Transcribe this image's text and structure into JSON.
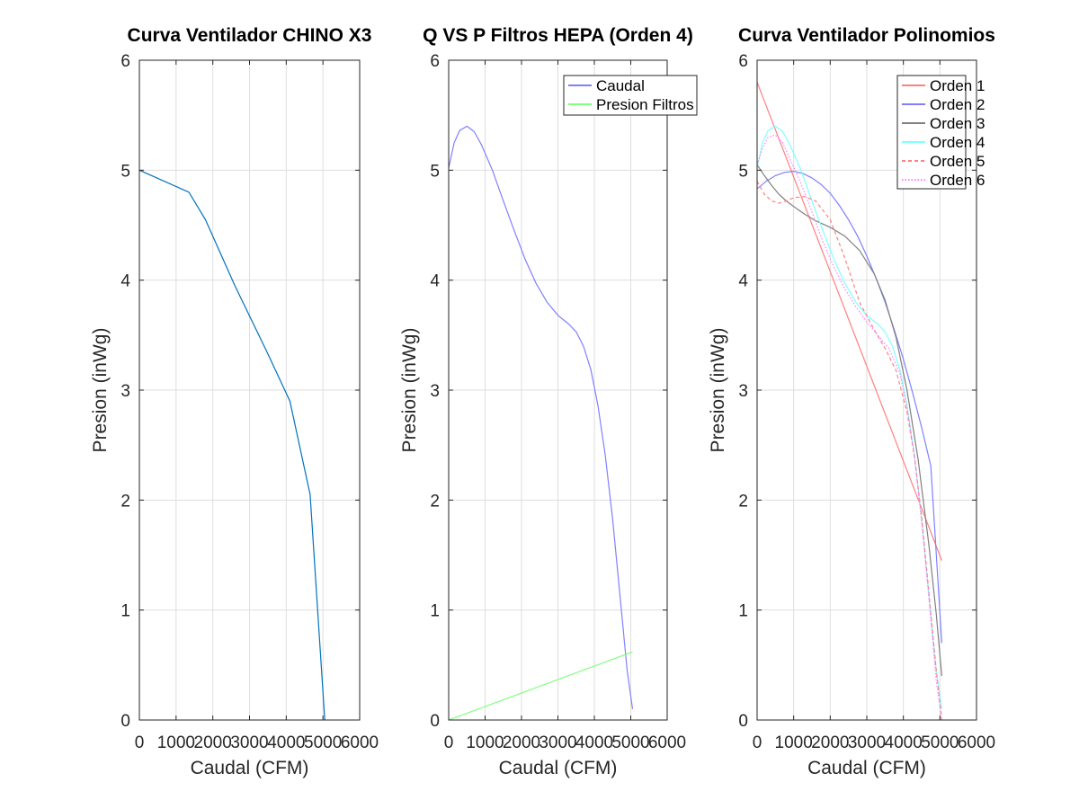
{
  "chart_data": [
    {
      "type": "line",
      "title": "Curva Ventilador CHINO X3",
      "xlabel": "Caudal (CFM)",
      "ylabel": "Presion (inWg)",
      "xlim": [
        0,
        6000
      ],
      "ylim": [
        0,
        6
      ],
      "xticks": [
        "0",
        "1000",
        "2000",
        "3000",
        "4000",
        "5000",
        "6000"
      ],
      "yticks": [
        "0",
        "1",
        "2",
        "3",
        "4",
        "5",
        "6"
      ],
      "grid": true,
      "legend": null,
      "series": [
        {
          "color": "#0072bd",
          "dash": "solid",
          "x": [
            0,
            1350,
            1800,
            2600,
            3500,
            4100,
            4650,
            5050
          ],
          "y": [
            5.0,
            4.8,
            4.55,
            3.95,
            3.33,
            2.9,
            2.05,
            0.0
          ]
        }
      ]
    },
    {
      "type": "line",
      "title": "Q VS P Filtros HEPA (Orden 4)",
      "xlabel": "Caudal (CFM)",
      "ylabel": "Presion (inWg)",
      "xlim": [
        0,
        6000
      ],
      "ylim": [
        0,
        6
      ],
      "xticks": [
        "0",
        "1000",
        "2000",
        "3000",
        "4000",
        "5000",
        "6000"
      ],
      "yticks": [
        "0",
        "1",
        "2",
        "3",
        "4",
        "5",
        "6"
      ],
      "grid": true,
      "legend": "top-right",
      "series": [
        {
          "name": "Caudal",
          "color": "#8080ff",
          "legend_color": "#0000ff",
          "dash": "solid",
          "x": [
            0,
            150,
            300,
            500,
            700,
            900,
            1200,
            1500,
            1800,
            2100,
            2400,
            2700,
            3000,
            3300,
            3500,
            3700,
            3900,
            4100,
            4300,
            4500,
            4700,
            4900,
            5050
          ],
          "y": [
            5.02,
            5.25,
            5.36,
            5.4,
            5.35,
            5.23,
            5.0,
            4.72,
            4.45,
            4.19,
            3.97,
            3.8,
            3.68,
            3.6,
            3.53,
            3.4,
            3.19,
            2.86,
            2.41,
            1.83,
            1.14,
            0.45,
            0.1
          ]
        },
        {
          "name": "Presion Filtros",
          "color": "#80ff80",
          "legend_color": "#00ff00",
          "dash": "solid",
          "x": [
            0,
            5050
          ],
          "y": [
            0.0,
            0.62
          ]
        }
      ]
    },
    {
      "type": "line",
      "title": "Curva Ventilador Polinomios",
      "xlabel": "Caudal (CFM)",
      "ylabel": "Presion (inWg)",
      "xlim": [
        0,
        6000
      ],
      "ylim": [
        0,
        6
      ],
      "xticks": [
        "0",
        "1000",
        "2000",
        "3000",
        "4000",
        "5000",
        "6000"
      ],
      "yticks": [
        "0",
        "1",
        "2",
        "3",
        "4",
        "5",
        "6"
      ],
      "grid": true,
      "legend": "top-right",
      "series": [
        {
          "name": "Orden 1",
          "color": "#ff8080",
          "legend_color": "#ff0000",
          "dash": "solid",
          "x": [
            0,
            5050
          ],
          "y": [
            5.8,
            1.45
          ]
        },
        {
          "name": "Orden 2",
          "color": "#8080ff",
          "legend_color": "#0000ff",
          "dash": "solid",
          "x": [
            0,
            250,
            500,
            750,
            1000,
            1250,
            1500,
            1750,
            2000,
            2250,
            2500,
            2750,
            3000,
            3250,
            3500,
            3750,
            4000,
            4250,
            4500,
            4750,
            5050
          ],
          "y": [
            4.83,
            4.9,
            4.95,
            4.98,
            4.99,
            4.97,
            4.93,
            4.87,
            4.79,
            4.68,
            4.55,
            4.4,
            4.22,
            4.02,
            3.8,
            3.55,
            3.28,
            2.98,
            2.66,
            2.31,
            0.7
          ]
        },
        {
          "name": "Orden 3",
          "color": "#808080",
          "legend_color": "#000000",
          "dash": "solid",
          "x": [
            0,
            200,
            400,
            600,
            800,
            1000,
            1300,
            1600,
            2000,
            2400,
            2800,
            3200,
            3500,
            3800,
            4100,
            4400,
            4700,
            4900,
            5050
          ],
          "y": [
            5.05,
            4.95,
            4.86,
            4.78,
            4.72,
            4.67,
            4.6,
            4.54,
            4.48,
            4.4,
            4.27,
            4.06,
            3.82,
            3.48,
            3.0,
            2.38,
            1.59,
            0.96,
            0.4
          ]
        },
        {
          "name": "Orden 4",
          "color": "#80ffff",
          "legend_color": "#00ffff",
          "dash": "solid",
          "x": [
            0,
            150,
            300,
            500,
            700,
            900,
            1200,
            1500,
            1800,
            2100,
            2400,
            2700,
            3000,
            3300,
            3500,
            3700,
            3900,
            4100,
            4300,
            4500,
            4700,
            4900,
            5050
          ],
          "y": [
            5.02,
            5.25,
            5.36,
            5.4,
            5.35,
            5.23,
            5.0,
            4.72,
            4.45,
            4.19,
            3.97,
            3.8,
            3.68,
            3.6,
            3.53,
            3.4,
            3.19,
            2.86,
            2.41,
            1.83,
            1.14,
            0.45,
            0.1
          ]
        },
        {
          "name": "Orden 5",
          "color": "#ff8080",
          "legend_color": "#ff0000",
          "dash": "dashed",
          "x": [
            0,
            200,
            400,
            600,
            800,
            1000,
            1300,
            1600,
            2000,
            2400,
            2800,
            3200,
            3500,
            3800,
            4100,
            4300,
            4500,
            4700,
            4900,
            5050
          ],
          "y": [
            4.9,
            4.78,
            4.72,
            4.7,
            4.72,
            4.75,
            4.76,
            4.72,
            4.55,
            4.2,
            3.8,
            3.55,
            3.38,
            3.18,
            2.8,
            2.4,
            1.85,
            1.15,
            0.45,
            0.0
          ]
        },
        {
          "name": "Orden 6",
          "color": "#ff80ff",
          "legend_color": "#ff00ff",
          "dash": "dotted",
          "x": [
            0,
            150,
            300,
            500,
            700,
            900,
            1200,
            1500,
            1800,
            2100,
            2400,
            2700,
            3000,
            3300,
            3600,
            3900,
            4100,
            4300,
            4500,
            4700,
            4900,
            5050
          ],
          "y": [
            5.05,
            5.2,
            5.3,
            5.32,
            5.25,
            5.1,
            4.88,
            4.62,
            4.35,
            4.12,
            3.92,
            3.76,
            3.62,
            3.5,
            3.38,
            3.16,
            2.85,
            2.4,
            1.8,
            1.1,
            0.35,
            0.0
          ]
        }
      ]
    }
  ]
}
